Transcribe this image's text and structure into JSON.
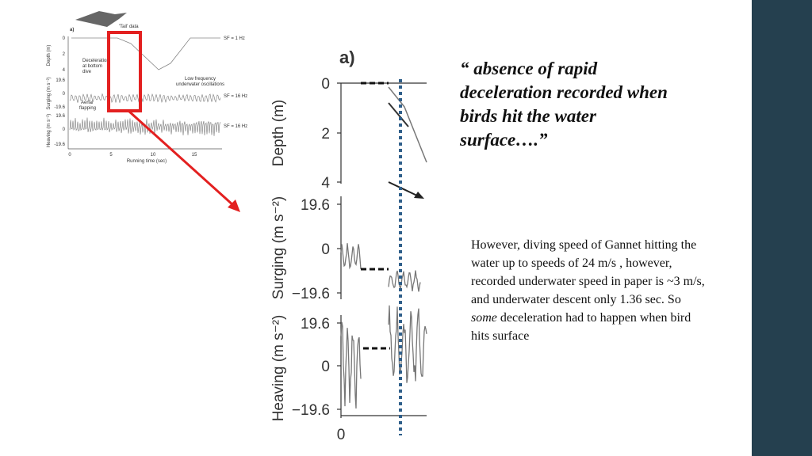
{
  "small_figure": {
    "panel_label": "a)",
    "tail_label": "'Tail' data",
    "depth_axis": "Depth (m)",
    "depth_ticks": [
      "0",
      "2",
      "4"
    ],
    "surging_axis": "Surging (m s⁻²)",
    "surging_ticks": [
      "19.6",
      "0",
      "-19.6"
    ],
    "heaving_axis": "Heaving (m s⁻²)",
    "heaving_ticks": [
      "19.6",
      "0",
      "-19.6"
    ],
    "x_ticks": [
      "0",
      "5",
      "10",
      "15"
    ],
    "x_axis": "Running time (sec)",
    "sf_depth": "SF = 1 Hz",
    "sf_surging": "SF = 16 Hz",
    "sf_heaving": "SF = 16 Hz",
    "deceleration_note": [
      "Deceleration",
      "at bottom",
      "dive"
    ],
    "oscillation_note": [
      "Low frequency",
      "underwater oscillations"
    ],
    "flapping_note": [
      "Aerial",
      "flapping"
    ]
  },
  "zoom_figure": {
    "panel_label": "a)",
    "depth_axis": "Depth (m)",
    "depth_ticks": [
      "0",
      "2",
      "4"
    ],
    "surging_axis": "Surging (m s⁻²)",
    "surging_ticks": [
      "19.6",
      "0",
      "−19.6"
    ],
    "heaving_axis": "Heaving (m s⁻²)",
    "heaving_ticks": [
      "19.6",
      "0",
      "−19.6"
    ],
    "x_tick": "0"
  },
  "quote": "“ absence of rapid deceleration recorded when birds hit the water surface….”",
  "body": {
    "text_1": "However, diving speed of Gannet hitting the water up to speeds of 24 m/s , however, recorded underwater speed in paper is ~3 m/s, and underwater descent only 1.36 sec.  So ",
    "emphasis": "some",
    "text_2": " deceleration had to happen when bird hits surface"
  }
}
